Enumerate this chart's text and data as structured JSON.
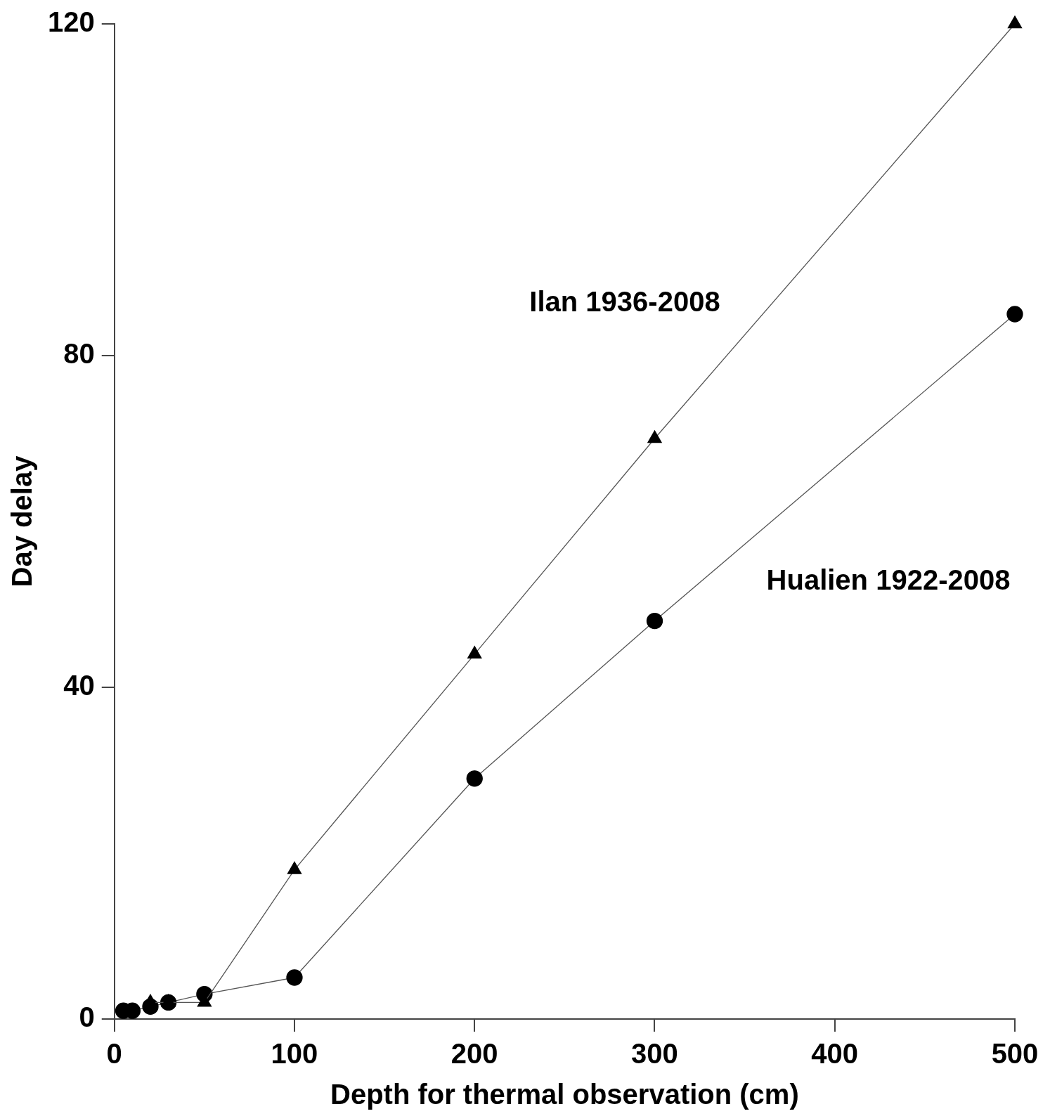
{
  "chart_data": {
    "type": "line",
    "xlabel": "Depth for thermal observation (cm)",
    "ylabel": "Day delay",
    "x": [
      5,
      10,
      20,
      30,
      50,
      100,
      200,
      300,
      500
    ],
    "series": [
      {
        "name": "Ilan 1936-2008",
        "color": "#000000",
        "marker": "triangle",
        "values": [
          null,
          null,
          2,
          2,
          2,
          18,
          44,
          70,
          120
        ]
      },
      {
        "name": "Hualien 1922-2008",
        "color": "#000000",
        "marker": "circle",
        "values": [
          1,
          1,
          1.5,
          2,
          3,
          5,
          29,
          48,
          85
        ]
      }
    ],
    "xlim": [
      0,
      500
    ],
    "xticks": [
      0,
      100,
      200,
      300,
      400,
      500
    ],
    "ylim": [
      0,
      120
    ],
    "yticks": [
      0,
      40,
      80,
      120
    ],
    "grid": false,
    "legend": false,
    "line_style": "solid"
  }
}
